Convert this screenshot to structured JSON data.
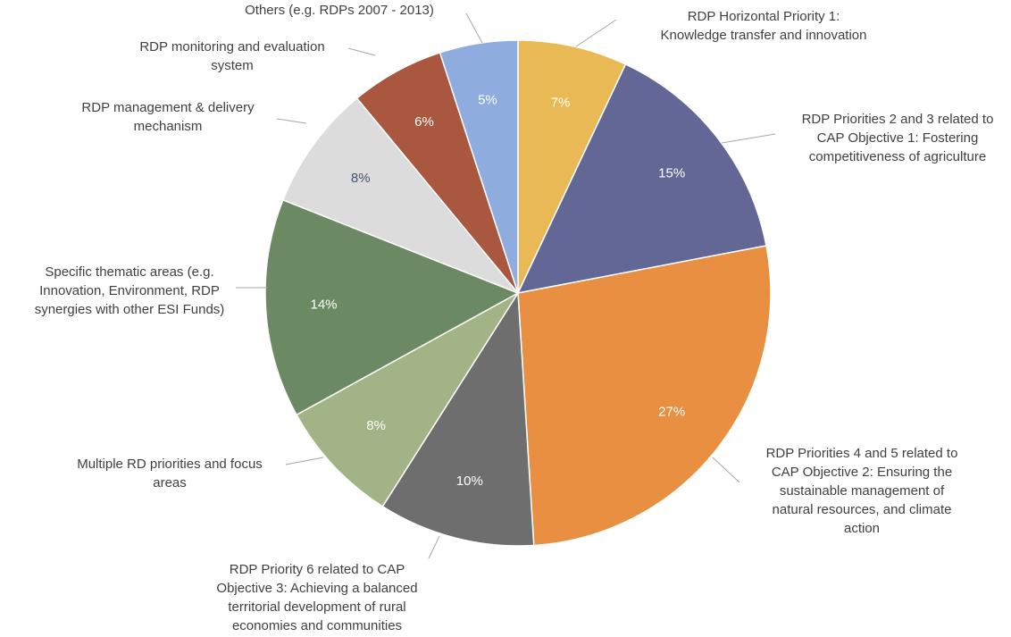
{
  "chart_data": {
    "type": "pie",
    "categories": [
      [
        "RDP Horizontal Priority 1:",
        "Knowledge  transfer and innovation"
      ],
      [
        "RDP Priorities 2 and 3 related to",
        "CAP Objective 1: Fostering",
        "competitiveness of agriculture"
      ],
      [
        "RDP Priorities 4 and 5 related to",
        "CAP Objective 2: Ensuring the",
        "sustainable management  of",
        "natural resources, and climate",
        "action"
      ],
      [
        "RDP Priority 6 related to CAP",
        "Objective 3: Achieving a balanced",
        "territorial development  of rural",
        "economies and communities"
      ],
      [
        "Multiple  RD priorities and focus",
        "areas"
      ],
      [
        "Specific thematic  areas (e.g.",
        "Innovation,  Environment,  RDP",
        "synergies with  other ESI Funds)"
      ],
      [
        "RDP management  & delivery",
        "mechanism"
      ],
      [
        "RDP monitoring  and evaluation",
        "system"
      ],
      [
        "Others (e.g. RDPs 2007 - 2013)"
      ]
    ],
    "values": [
      7,
      15,
      27,
      10,
      8,
      14,
      8,
      6,
      5
    ],
    "value_labels": [
      "7%",
      "15%",
      "27%",
      "10%",
      "8%",
      "14%",
      "8%",
      "6%",
      "5%"
    ],
    "colors": [
      "#E8B954",
      "#636796",
      "#E88F42",
      "#6E6E6E",
      "#A2B486",
      "#6B8A64",
      "#DCDCDC",
      "#A9573F",
      "#8EADDE"
    ]
  }
}
